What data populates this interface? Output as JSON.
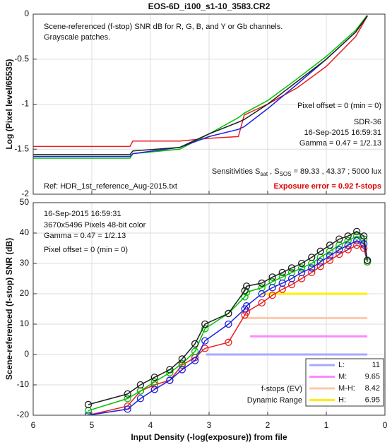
{
  "chart_data": [
    {
      "type": "line",
      "title": "EOS-6D_i100_s1-10_3583.CR2",
      "y_label": "Log (Pixel level/65535)",
      "xlim": [
        6,
        0
      ],
      "ylim": [
        -2,
        0
      ],
      "xticks": [
        6,
        5,
        4,
        3,
        2,
        1,
        0
      ],
      "show_xtick_labels": false,
      "yticks": [
        -2,
        -1.5,
        -1,
        -0.5,
        0
      ],
      "grid": true,
      "x": [
        6,
        4.35,
        4.3,
        3.5,
        3.0,
        2.5,
        2.4,
        2.0,
        1.5,
        1.0,
        0.5,
        0.3
      ],
      "series": [
        {
          "color": "#e82020",
          "values": [
            -1.47,
            -1.47,
            -1.41,
            -1.41,
            -1.38,
            -1.36,
            -1.12,
            -1.0,
            -0.82,
            -0.58,
            -0.25,
            -0.02
          ]
        },
        {
          "color": "#00c000",
          "values": [
            -1.6,
            -1.6,
            -1.55,
            -1.5,
            -1.33,
            -1.15,
            -1.1,
            -0.96,
            -0.72,
            -0.47,
            -0.18,
            -0.01
          ]
        },
        {
          "color": "#2020e0",
          "values": [
            -1.58,
            -1.58,
            -1.55,
            -1.48,
            -1.36,
            -1.28,
            -1.25,
            -1.05,
            -0.78,
            -0.5,
            -0.2,
            -0.02
          ]
        },
        {
          "color": "#202020",
          "values": [
            -1.56,
            -1.56,
            -1.52,
            -1.48,
            -1.33,
            -1.2,
            -1.17,
            -1.0,
            -0.75,
            -0.5,
            -0.2,
            -0.02
          ]
        }
      ],
      "annotations": [
        "Scene-referenced (f-stop) SNR dB for R, G, B, and Y or Gb channels.",
        "Grayscale patches.",
        "Pixel offset = 0  (min = 0)",
        "SDR-36",
        "16-Sep-2015 16:59:31",
        "Gamma = 0.47 = 1/2.13",
        "Ref: HDR_1st_reference_Aug-2015.txt",
        "Exposure error = 0.92 f-stops"
      ],
      "sensitivities": [
        "Sensitivities S",
        "sat",
        " , S",
        "SOS",
        " = 89.33 ,  43.37 ;  5000 lux"
      ]
    },
    {
      "type": "line",
      "x_label": "Input Density (-log(exposure))   from file",
      "y_label": "Scene-referenced (f-stop) SNR (dB)",
      "xlim": [
        6,
        0
      ],
      "ylim": [
        -20,
        50
      ],
      "xticks": [
        6,
        5,
        4,
        3,
        2,
        1,
        0
      ],
      "show_xtick_labels": true,
      "yticks": [
        -20,
        -10,
        0,
        10,
        20,
        30,
        40,
        50
      ],
      "grid": true,
      "markers": "circle",
      "x": [
        5.06,
        4.39,
        4.17,
        3.93,
        3.67,
        3.46,
        3.24,
        3.07,
        2.67,
        2.39,
        2.36,
        2.1,
        1.92,
        1.75,
        1.59,
        1.42,
        1.25,
        1.1,
        0.94,
        0.78,
        0.63,
        0.48,
        0.36,
        0.3
      ],
      "series": [
        {
          "color": "#e82020",
          "values": [
            -20,
            -17,
            -12,
            -10,
            -8.5,
            -3.5,
            -1,
            2,
            4,
            13,
            14,
            17,
            19.5,
            21.5,
            23,
            25,
            27,
            29,
            31,
            33,
            34.5,
            36,
            35,
            30.5
          ]
        },
        {
          "color": "#00c000",
          "values": [
            -18.5,
            -14.5,
            -12,
            -9,
            -6,
            -3,
            1,
            8.5,
            13.5,
            19,
            20.5,
            22,
            24,
            25.5,
            27,
            28.5,
            30,
            32,
            34,
            36,
            37.5,
            39,
            38,
            30.5
          ]
        },
        {
          "color": "#2020e0",
          "values": [
            -20,
            -18,
            -14.5,
            -11.5,
            -8.5,
            -5,
            -2,
            4.5,
            10,
            15,
            16,
            20,
            22,
            23.5,
            25,
            27,
            28.5,
            30.5,
            32.5,
            34.5,
            36,
            37.5,
            36.5,
            31
          ]
        },
        {
          "color": "#202020",
          "values": [
            -16.5,
            -13,
            -10,
            -7.5,
            -5,
            -1.5,
            3.5,
            10,
            13.5,
            21,
            22.5,
            23.5,
            25.5,
            27,
            28.5,
            30,
            32,
            34,
            36,
            38,
            39,
            40.5,
            39,
            31
          ]
        }
      ],
      "annotations": [
        "16-Sep-2015 16:59:31",
        "3670x5496 Pixels   48-bit color",
        "Gamma = 0.47 = 1/2.13",
        "Pixel offset = 0  (min = 0)",
        "f-stops (EV)",
        "Dynamic Range"
      ],
      "dynamic_range": [
        {
          "name": "L:",
          "value": 11,
          "color": "#a8a8ff",
          "snr": 0,
          "start": 3.05
        },
        {
          "name": "M:",
          "value": 9.65,
          "color": "#ff88ff",
          "snr": 6,
          "start": 2.3
        },
        {
          "name": "M-H:",
          "value": 8.42,
          "color": "#ffc8a8",
          "snr": 12,
          "start": 2.45
        },
        {
          "name": "H:",
          "value": 6.95,
          "color": "#ffee00",
          "snr": 20,
          "start": 2.1
        }
      ]
    }
  ]
}
